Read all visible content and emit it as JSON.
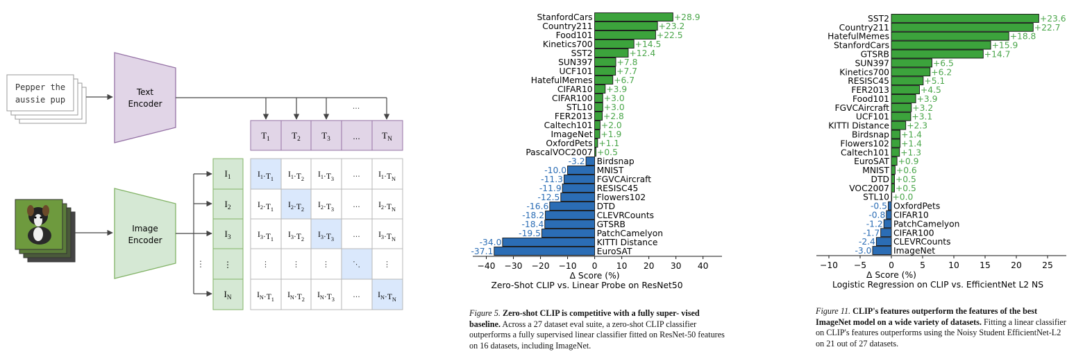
{
  "diagram": {
    "text_input": [
      "Pepper the",
      "aussie pup"
    ],
    "text_encoder": [
      "Text",
      "Encoder"
    ],
    "image_encoder": [
      "Image",
      "Encoder"
    ],
    "ellipsis": "...",
    "vdots": "⋮",
    "ddots": "⋱",
    "text_tokens": [
      "T1",
      "T2",
      "T3",
      "...",
      "TN"
    ],
    "image_tokens": [
      "I1",
      "I2",
      "I3",
      "⋮",
      "IN"
    ],
    "matrix": [
      [
        "I1·T1",
        "I1·T2",
        "I1·T3",
        "...",
        "I1·TN"
      ],
      [
        "I2·T1",
        "I2·T2",
        "I2·T3",
        "...",
        "I2·TN"
      ],
      [
        "I3·T1",
        "I3·T2",
        "I3·T3",
        "...",
        "I3·TN"
      ],
      [
        "⋮",
        "⋮",
        "⋮",
        "⋱",
        "⋮"
      ],
      [
        "IN·T1",
        "IN·T2",
        "IN·T3",
        "...",
        "IN·TN"
      ]
    ],
    "colors": {
      "text_encoder": "#e1d5e7",
      "text_encoder_border": "#9673a6",
      "image_encoder": "#d5e8d4",
      "image_encoder_border": "#82b366",
      "diag": "#dae8fc"
    }
  },
  "chart_data": [
    {
      "type": "bar",
      "orientation": "horizontal",
      "xlabel": "Δ Score (%)",
      "title": "Zero-Shot CLIP vs. Linear Probe on ResNet50",
      "xlim": [
        -45,
        47
      ],
      "xticks": [
        -40,
        -30,
        -20,
        -10,
        0,
        10,
        20,
        30,
        40
      ],
      "colors": {
        "positive": "#3ca33c",
        "negative": "#2b6db5",
        "pos_label": "#4aa64a",
        "neg_label": "#2b6db5"
      },
      "categories": [
        "StanfordCars",
        "Country211",
        "Food101",
        "Kinetics700",
        "SST2",
        "SUN397",
        "UCF101",
        "HatefulMemes",
        "CIFAR10",
        "CIFAR100",
        "STL10",
        "FER2013",
        "Caltech101",
        "ImageNet",
        "OxfordPets",
        "PascalVOC2007",
        "Birdsnap",
        "MNIST",
        "FGVCAircraft",
        "RESISC45",
        "Flowers102",
        "DTD",
        "CLEVRCounts",
        "GTSRB",
        "PatchCamelyon",
        "KITTI Distance",
        "EuroSAT"
      ],
      "values": [
        28.9,
        23.2,
        22.5,
        14.5,
        12.4,
        7.8,
        7.7,
        6.7,
        3.9,
        3.0,
        3.0,
        2.8,
        2.0,
        1.9,
        1.1,
        0.5,
        -3.2,
        -10.0,
        -11.3,
        -11.9,
        -12.5,
        -16.6,
        -18.2,
        -18.4,
        -19.5,
        -34.0,
        -37.1
      ],
      "value_labels": [
        "+28.9",
        "+23.2",
        "+22.5",
        "+14.5",
        "+12.4",
        "+7.8",
        "+7.7",
        "+6.7",
        "+3.9",
        "+3.0",
        "+3.0",
        "+2.8",
        "+2.0",
        "+1.9",
        "+1.1",
        "+0.5",
        "-3.2",
        "-10.0",
        "-11.3",
        "-11.9",
        "-12.5",
        "-16.6",
        "-18.2",
        "-18.4",
        "-19.5",
        "-34.0",
        "-37.1"
      ]
    },
    {
      "type": "bar",
      "orientation": "horizontal",
      "xlabel": "Δ Score (%)",
      "title": "Logistic Regression on CLIP vs. EfficientNet L2 NS",
      "xlim": [
        -12,
        28
      ],
      "xticks": [
        -10,
        -5,
        0,
        5,
        10,
        15,
        20,
        25
      ],
      "colors": {
        "positive": "#3ca33c",
        "negative": "#2b6db5",
        "pos_label": "#4aa64a",
        "neg_label": "#2b6db5"
      },
      "categories": [
        "SST2",
        "Country211",
        "HatefulMemes",
        "StanfordCars",
        "GTSRB",
        "SUN397",
        "Kinetics700",
        "RESISC45",
        "FER2013",
        "Food101",
        "FGVCAircraft",
        "UCF101",
        "KITTI Distance",
        "Birdsnap",
        "Flowers102",
        "Caltech101",
        "EuroSAT",
        "MNIST",
        "DTD",
        "VOC2007",
        "STL10",
        "OxfordPets",
        "CIFAR10",
        "PatchCamelyon",
        "CIFAR100",
        "CLEVRCounts",
        "ImageNet"
      ],
      "values": [
        23.6,
        22.7,
        18.8,
        15.9,
        14.7,
        6.5,
        6.2,
        5.1,
        4.5,
        3.9,
        3.2,
        3.1,
        2.3,
        1.4,
        1.4,
        1.3,
        0.9,
        0.6,
        0.5,
        0.5,
        0.0,
        -0.5,
        -0.8,
        -1.2,
        -1.7,
        -2.4,
        -3.0
      ],
      "value_labels": [
        "+23.6",
        "+22.7",
        "+18.8",
        "+15.9",
        "+14.7",
        "+6.5",
        "+6.2",
        "+5.1",
        "+4.5",
        "+3.9",
        "+3.2",
        "+3.1",
        "+2.3",
        "+1.4",
        "+1.4",
        "+1.3",
        "+0.9",
        "+0.6",
        "+0.5",
        "+0.5",
        "+0.0",
        "-0.5",
        "-0.8",
        "-1.2",
        "-1.7",
        "-2.4",
        "-3.0"
      ]
    }
  ],
  "captions": [
    {
      "figure": "Figure 5.",
      "bold": "Zero-shot CLIP is competitive with a fully super- vised baseline.",
      "body": "Across a 27 dataset eval suite, a zero-shot CLIP classifier outperforms a fully supervised linear classifier fitted on ResNet-50 features on 16 datasets, including ImageNet."
    },
    {
      "figure": "Figure 11.",
      "bold": "CLIP's features outperform the features of the best ImageNet model on a wide variety of datasets.",
      "body": "Fitting a linear classifier on CLIP's features outperforms using the Noisy Student EfficientNet-L2 on 21 out of 27 datasets."
    }
  ]
}
